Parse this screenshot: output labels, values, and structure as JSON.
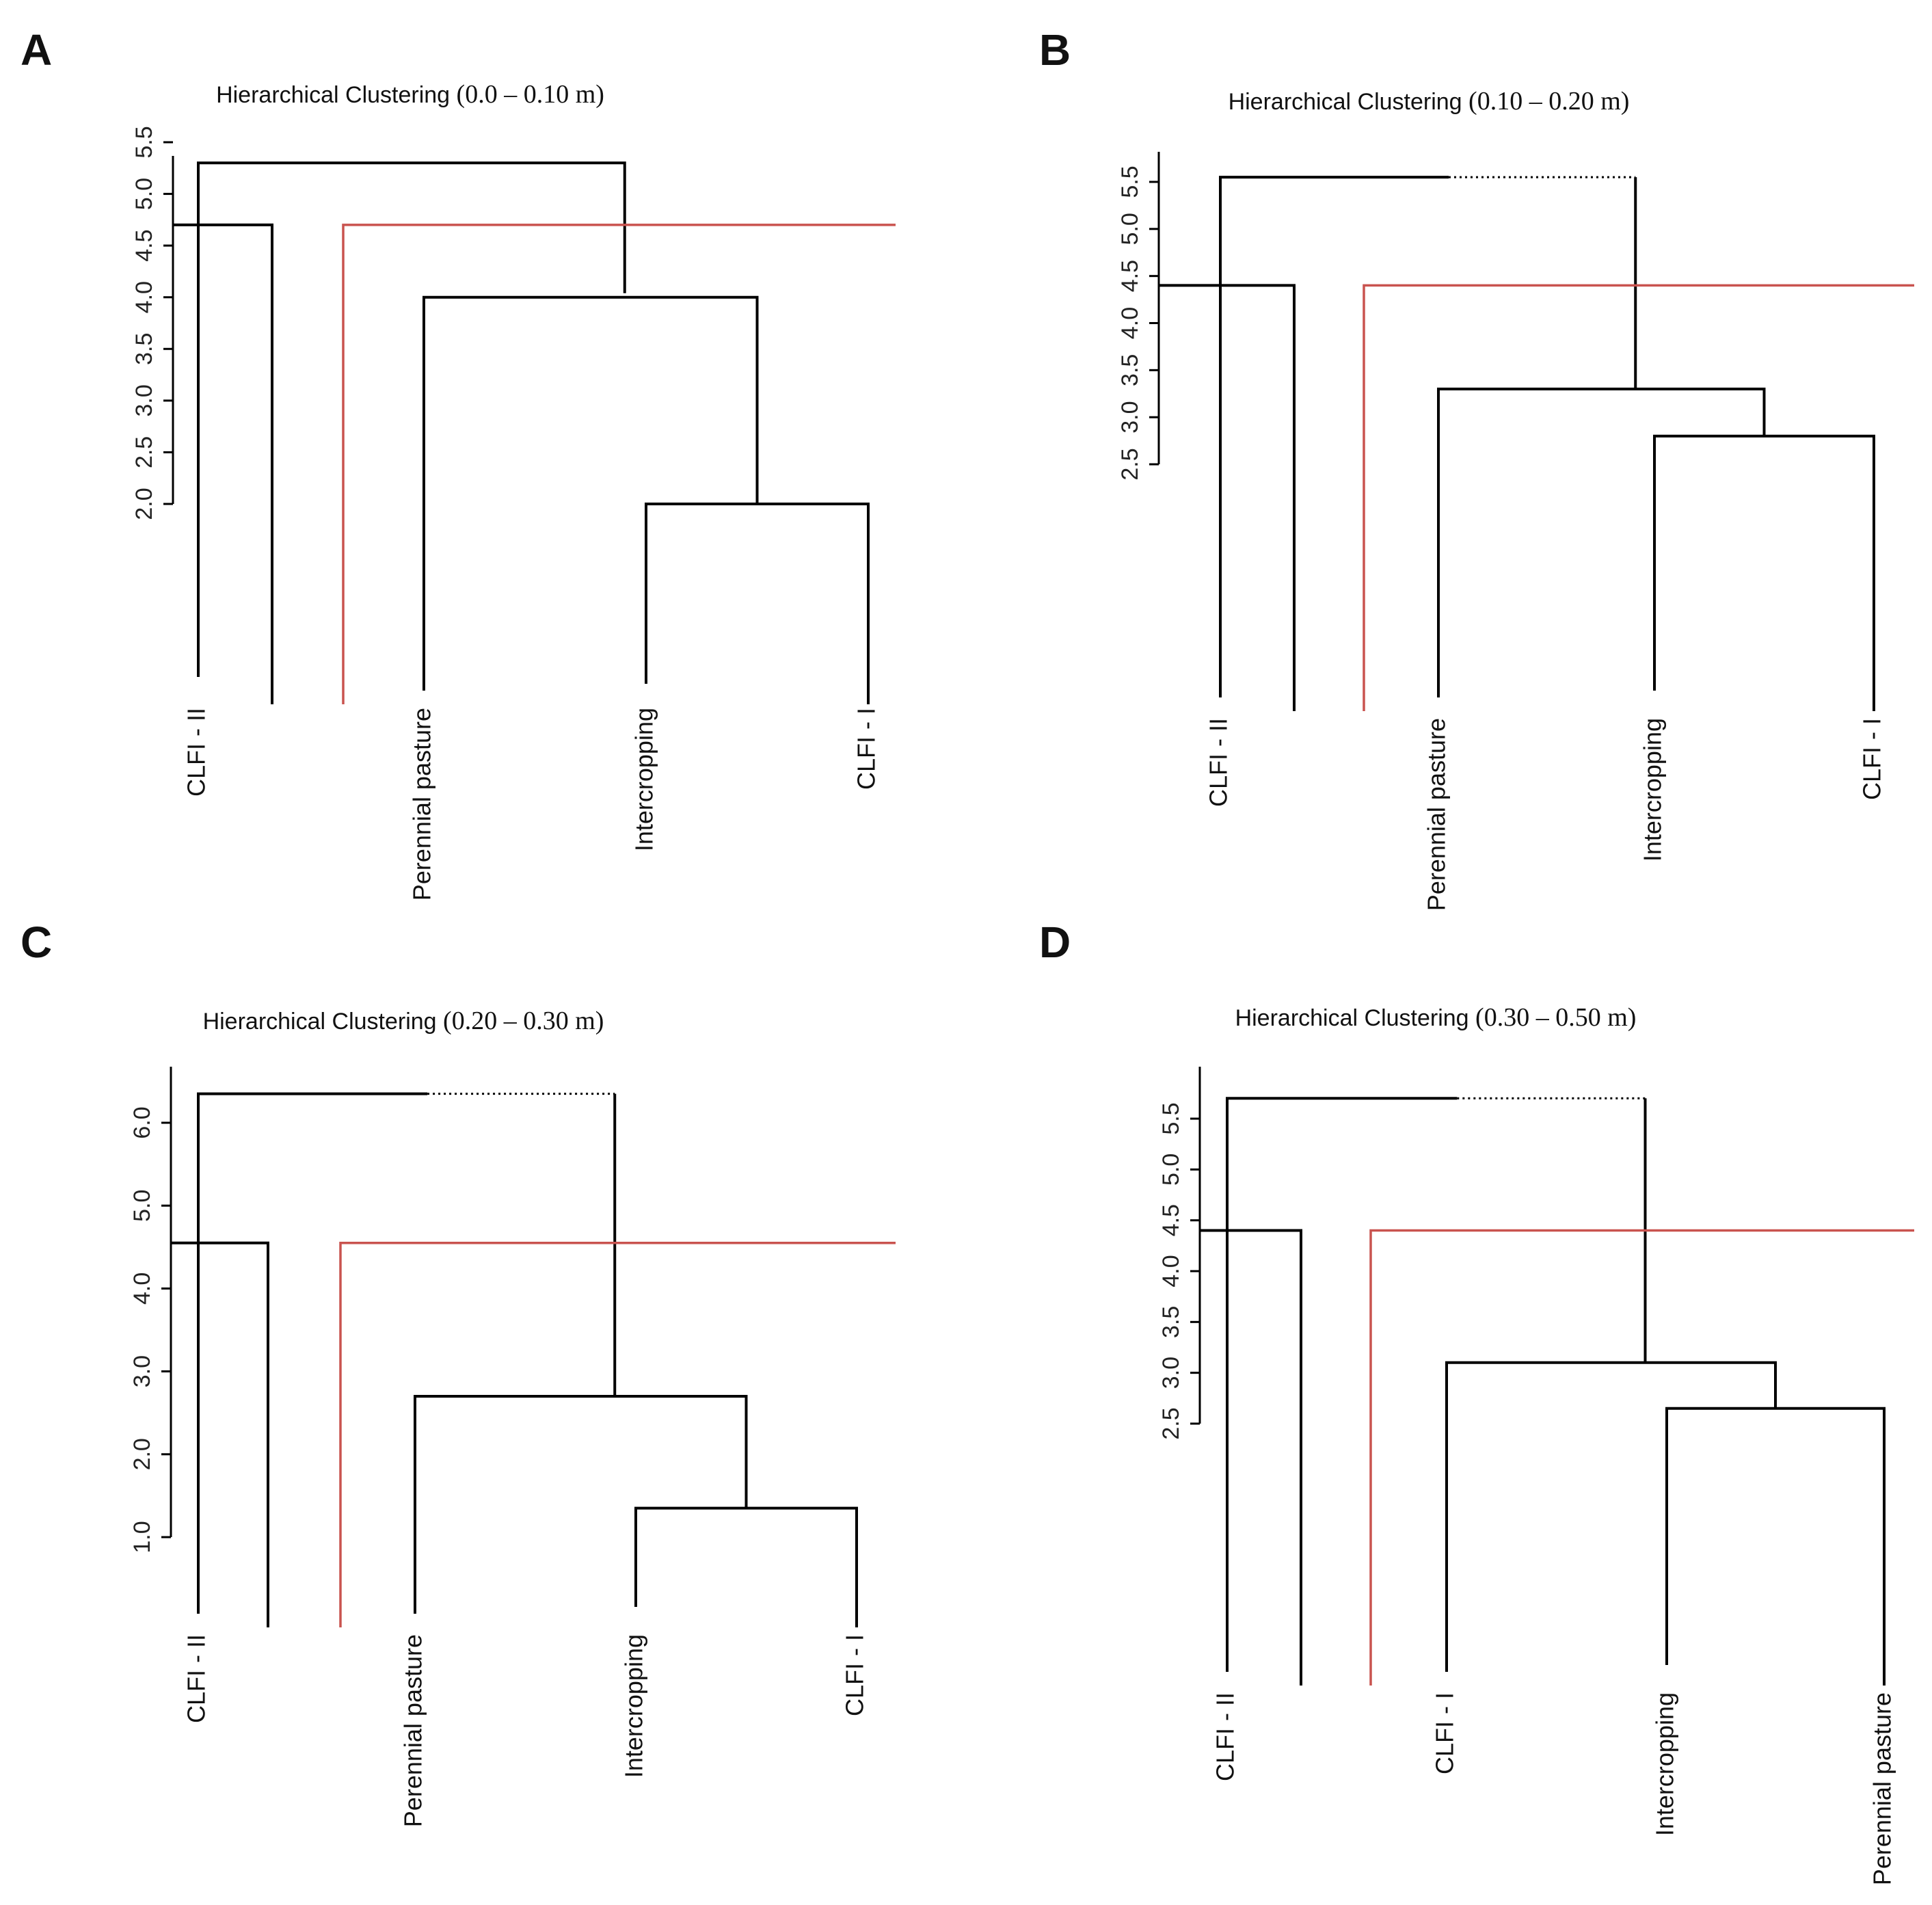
{
  "chart_data": [
    {
      "type": "dendrogram",
      "panel": "A",
      "title_main": "Hierarchical Clustering",
      "title_range": "(0.0 – 0.10 m)",
      "yticks": [
        "2.0",
        "2.5",
        "3.0",
        "3.5",
        "4.0",
        "4.5",
        "5.0",
        "5.5"
      ],
      "leaves": [
        "CLFI - II",
        "Perennial pasture",
        "Intercropping",
        "CLFI - I"
      ],
      "merges": [
        {
          "members": [
            "Intercropping",
            "CLFI - I"
          ],
          "height": 2.0
        },
        {
          "members": [
            "Perennial pasture",
            "Intercropping",
            "CLFI - I"
          ],
          "height": 4.0
        },
        {
          "members": [
            "CLFI - II",
            "Perennial pasture",
            "Intercropping",
            "CLFI - I"
          ],
          "height": 5.3
        }
      ],
      "cut_height": 4.7,
      "cut_color": "#c9534f"
    },
    {
      "type": "dendrogram",
      "panel": "B",
      "title_main": "Hierarchical Clustering",
      "title_range": "(0.10 – 0.20 m)",
      "yticks": [
        "2.5",
        "3.0",
        "3.5",
        "4.0",
        "4.5",
        "5.0",
        "5.5"
      ],
      "leaves": [
        "CLFI - II",
        "Perennial pasture",
        "Intercropping",
        "CLFI - I"
      ],
      "merges": [
        {
          "members": [
            "Intercropping",
            "CLFI - I"
          ],
          "height": 2.8
        },
        {
          "members": [
            "Perennial pasture",
            "Intercropping",
            "CLFI - I"
          ],
          "height": 3.3
        },
        {
          "members": [
            "CLFI - II",
            "Perennial pasture",
            "Intercropping",
            "CLFI - I"
          ],
          "height": 5.55
        }
      ],
      "cut_height": 4.4,
      "cut_color": "#c9534f"
    },
    {
      "type": "dendrogram",
      "panel": "C",
      "title_main": "Hierarchical Clustering",
      "title_range": "(0.20 – 0.30 m)",
      "yticks": [
        "1.0",
        "2.0",
        "3.0",
        "4.0",
        "5.0",
        "6.0"
      ],
      "leaves": [
        "CLFI - II",
        "Perennial pasture",
        "Intercropping",
        "CLFI - I"
      ],
      "merges": [
        {
          "members": [
            "Intercropping",
            "CLFI - I"
          ],
          "height": 1.35
        },
        {
          "members": [
            "Perennial pasture",
            "Intercropping",
            "CLFI - I"
          ],
          "height": 2.7
        },
        {
          "members": [
            "CLFI - II",
            "Perennial pasture",
            "Intercropping",
            "CLFI - I"
          ],
          "height": 6.35
        }
      ],
      "cut_height": 4.55,
      "cut_color": "#c9534f"
    },
    {
      "type": "dendrogram",
      "panel": "D",
      "title_main": "Hierarchical Clustering",
      "title_range": "(0.30 – 0.50 m)",
      "yticks": [
        "2.5",
        "3.0",
        "3.5",
        "4.0",
        "4.5",
        "5.0",
        "5.5"
      ],
      "leaves": [
        "CLFI - II",
        "CLFI - I",
        "Intercropping",
        "Perennial pasture"
      ],
      "merges": [
        {
          "members": [
            "Intercropping",
            "Perennial pasture"
          ],
          "height": 2.65
        },
        {
          "members": [
            "CLFI - I",
            "Intercropping",
            "Perennial pasture"
          ],
          "height": 3.1
        },
        {
          "members": [
            "CLFI - II",
            "CLFI - I",
            "Intercropping",
            "Perennial pasture"
          ],
          "height": 5.7
        }
      ],
      "cut_height": 4.4,
      "cut_color": "#c9534f"
    }
  ]
}
